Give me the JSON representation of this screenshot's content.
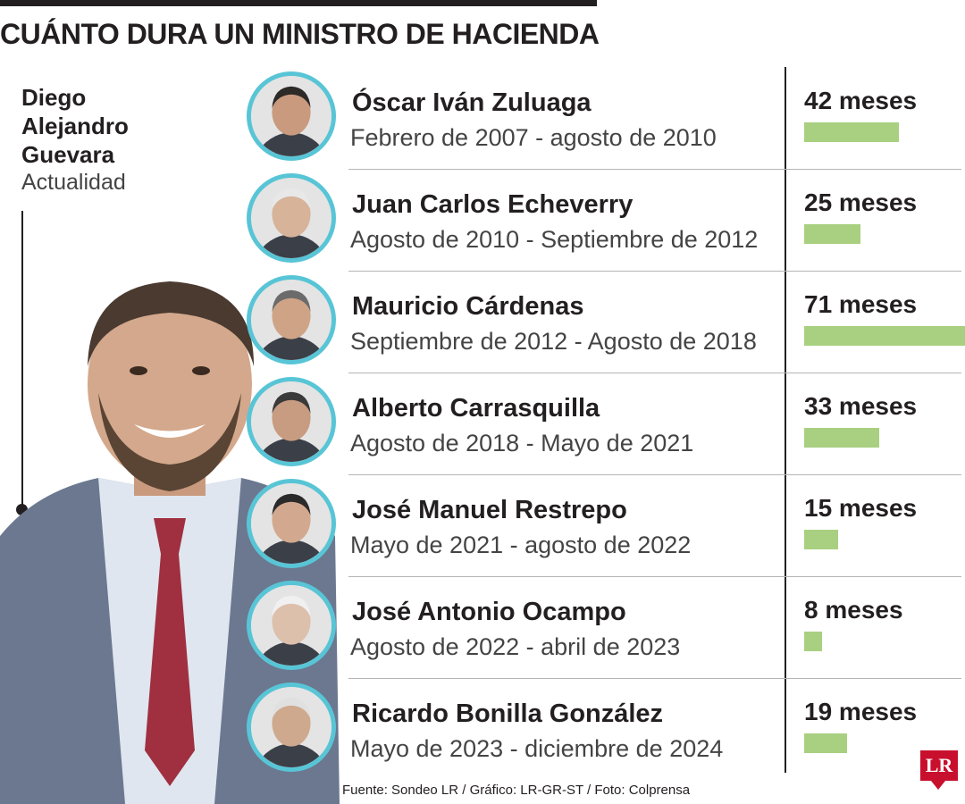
{
  "title": "CUÁNTO DURA UN MINISTRO DE HACIENDA",
  "current": {
    "name": "Diego Alejandro Guevara",
    "period": "Actualidad"
  },
  "source": "Fuente: Sondeo LR / Gráfico: LR-GR-ST / Foto: Colprensa",
  "logo": "LR",
  "colors": {
    "accent_ring": "#58c5d6",
    "bar": "#a8d080",
    "text": "#231f20"
  },
  "chart_data": {
    "type": "bar",
    "unit": "meses",
    "categories": [
      "Óscar Iván Zuluaga",
      "Juan Carlos Echeverry",
      "Mauricio Cárdenas",
      "Alberto Carrasquilla",
      "José Manuel Restrepo",
      "José Antonio Ocampo",
      "Ricardo Bonilla González"
    ],
    "periods": [
      "Febrero de 2007 - agosto de 2010",
      "Agosto de 2010 - Septiembre de 2012",
      "Septiembre de 2012 - Agosto de 2018",
      "Agosto de 2018 - Mayo de 2021",
      "Mayo de 2021 - agosto de 2022",
      "Agosto de 2022 - abril de 2023",
      "Mayo de 2023 - diciembre de 2024"
    ],
    "values": [
      42,
      25,
      71,
      33,
      15,
      8,
      19
    ],
    "value_labels": [
      "42 meses",
      "25 meses",
      "71 meses",
      "33 meses",
      "15 meses",
      "8 meses",
      "19 meses"
    ]
  }
}
